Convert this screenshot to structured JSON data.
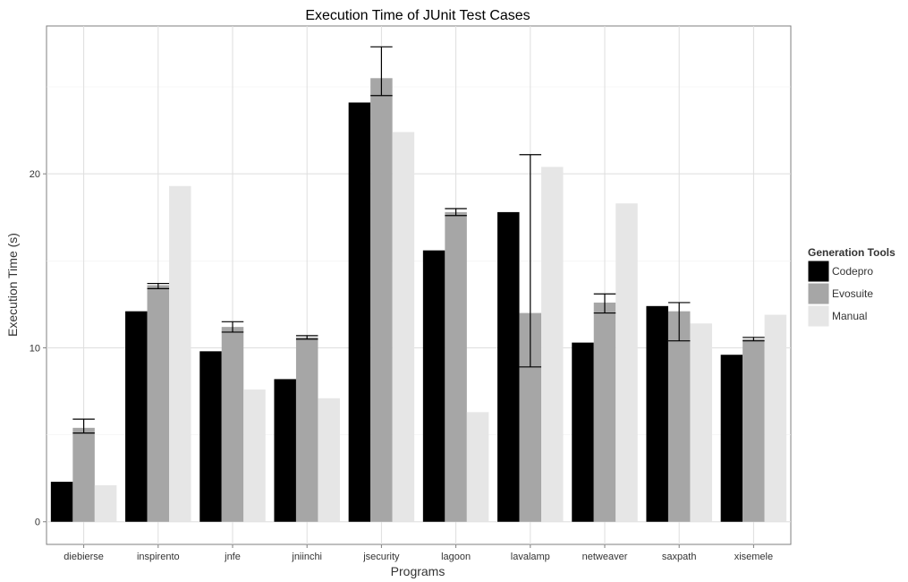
{
  "chart_data": {
    "type": "bar",
    "title": "Execution Time of JUnit Test Cases",
    "xlabel": "Programs",
    "ylabel": "Execution Time (s)",
    "ylim": [
      -1.3,
      28.5
    ],
    "yticks": [
      0,
      10,
      20
    ],
    "grid": true,
    "legend_title": "Generation Tools",
    "legend_position": "right",
    "categories": [
      "diebierse",
      "inspirento",
      "jnfe",
      "jniinchi",
      "jsecurity",
      "lagoon",
      "lavalamp",
      "netweaver",
      "saxpath",
      "xisemele"
    ],
    "series": [
      {
        "name": "Codepro",
        "color": "#000000",
        "values": [
          2.3,
          12.1,
          9.8,
          8.2,
          24.1,
          15.6,
          17.8,
          10.3,
          12.4,
          9.6
        ]
      },
      {
        "name": "Evosuite",
        "color": "#a6a6a6",
        "values": [
          5.4,
          13.6,
          11.2,
          10.6,
          25.5,
          17.8,
          12.0,
          12.6,
          12.1,
          10.5
        ],
        "error": [
          [
            5.1,
            5.9
          ],
          [
            13.4,
            13.7
          ],
          [
            10.9,
            11.5
          ],
          [
            10.5,
            10.7
          ],
          [
            24.5,
            27.3
          ],
          [
            17.6,
            18.0
          ],
          [
            8.9,
            21.1
          ],
          [
            12.0,
            13.1
          ],
          [
            10.4,
            12.6
          ],
          [
            10.4,
            10.6
          ]
        ]
      },
      {
        "name": "Manual",
        "color": "#e6e6e6",
        "values": [
          2.1,
          19.3,
          7.6,
          7.1,
          22.4,
          6.3,
          20.4,
          18.3,
          11.4,
          11.9
        ]
      }
    ]
  }
}
